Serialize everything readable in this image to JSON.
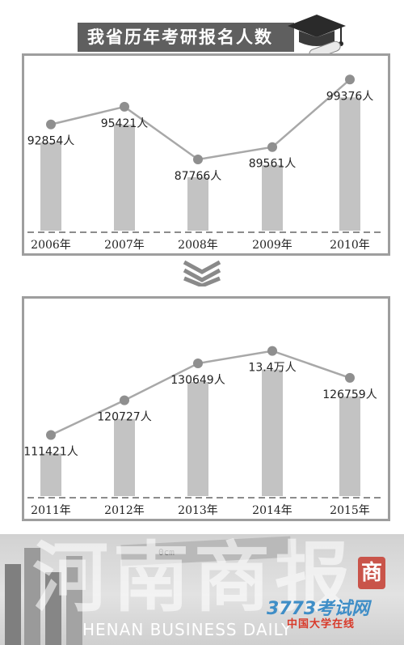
{
  "title": "我省历年考研报名人数",
  "chart_data": [
    {
      "type": "bar",
      "categories": [
        "2006年",
        "2007年",
        "2008年",
        "2009年",
        "2010年"
      ],
      "values": [
        92854,
        95421,
        87766,
        89561,
        99376
      ],
      "data_labels": [
        "92854人",
        "95421人",
        "87766人",
        "89561人",
        "99376人"
      ],
      "overlay": "line",
      "grid": false
    },
    {
      "type": "bar",
      "categories": [
        "2011年",
        "2012年",
        "2013年",
        "2014年",
        "2015年"
      ],
      "values": [
        111421,
        120727,
        130649,
        134000,
        126759
      ],
      "data_labels": [
        "111421人",
        "120727人",
        "130649人",
        "13.4万人",
        "126759人"
      ],
      "overlay": "line",
      "grid": false
    }
  ],
  "banner": {
    "title_cn": "河南商报",
    "title_en": "HENAN BUSINESS DAILY",
    "seal": "商",
    "ruler_text": "0cm"
  },
  "watermark": {
    "site": "3773考试网",
    "sub": "中国大学在线"
  },
  "colors": {
    "bar": "#c3c3c3",
    "line": "#a8a8a8",
    "dot": "#8f8f8f",
    "panel_border": "#9e9e9e",
    "title_bg": "#5f5f5f"
  }
}
